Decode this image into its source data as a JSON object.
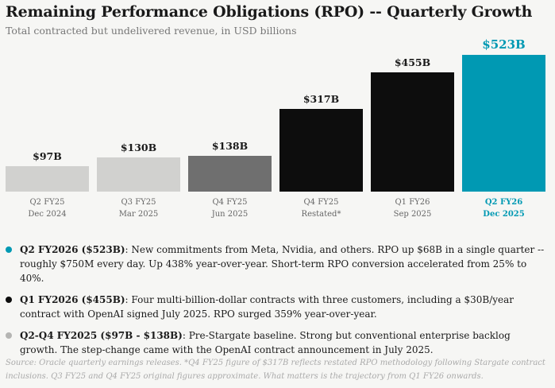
{
  "title": "Remaining Performance Obligations (RPO) -- Quarterly Growth",
  "subtitle": "Total contracted but undelivered revenue, in USD billions",
  "chart_data": {
    "type": "bar",
    "categories": [
      "Q2 FY25",
      "Q3 FY25",
      "Q4 FY25",
      "Q4 FY25",
      "Q1 FY26",
      "Q2 FY26"
    ],
    "sublabels": [
      "Dec 2024",
      "Mar 2025",
      "Jun 2025",
      "Restated*",
      "Sep 2025",
      "Dec 2025"
    ],
    "values": [
      97,
      130,
      138,
      317,
      455,
      523
    ],
    "value_labels": [
      "$97B",
      "$130B",
      "$138B",
      "$317B",
      "$455B",
      "$523B"
    ],
    "colors": [
      "#d1d1cf",
      "#d1d1cf",
      "#6f6f6f",
      "#0d0d0d",
      "#0d0d0d",
      "#0099b3"
    ],
    "highlight_index": 5,
    "ylabel": "USD billions",
    "ylim": [
      0,
      523
    ]
  },
  "notes": [
    {
      "color": "#0099b3",
      "bold": "Q2 FY2026 ($523B)",
      "text": ": New commitments from Meta, Nvidia, and others. RPO up $68B in a single quarter -- roughly $750M every day. Up 438% year-over-year. Short-term RPO conversion accelerated from 25% to 40%."
    },
    {
      "color": "#0d0d0d",
      "bold": "Q1 FY2026 ($455B)",
      "text": ": Four multi-billion-dollar contracts with three customers, including a $30B/year contract with OpenAI signed July 2025. RPO surged 359% year-over-year."
    },
    {
      "color": "#b5b5b3",
      "bold": "Q2-Q4 FY2025 ($97B - $138B)",
      "text": ": Pre-Stargate baseline. Strong but conventional enterprise backlog growth. The step-change came with the OpenAI contract announcement in July 2025."
    }
  ],
  "footer": "Source: Oracle quarterly earnings releases. *Q4 FY25 figure of $317B reflects restated RPO methodology following Stargate contract inclusions. Q3 FY25 and Q4 FY25 original figures approximate. What matters is the trajectory from Q1 FY26 onwards."
}
